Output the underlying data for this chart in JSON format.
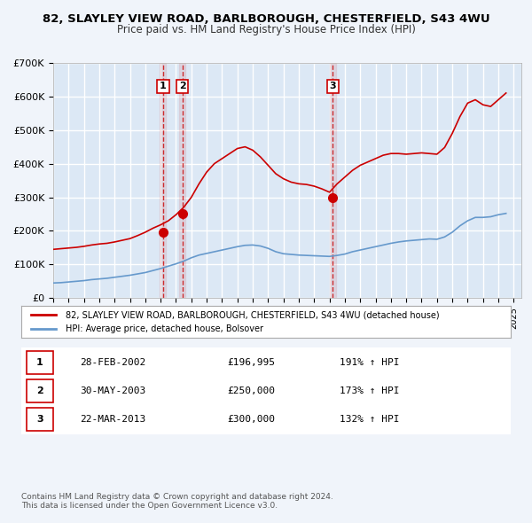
{
  "title": "82, SLAYLEY VIEW ROAD, BARLBOROUGH, CHESTERFIELD, S43 4WU",
  "subtitle": "Price paid vs. HM Land Registry's House Price Index (HPI)",
  "bg_color": "#f0f4fa",
  "plot_bg_color": "#dce8f5",
  "grid_color": "#ffffff",
  "red_line_color": "#cc0000",
  "blue_line_color": "#6699cc",
  "ylim": [
    0,
    700000
  ],
  "yticks": [
    0,
    100000,
    200000,
    300000,
    400000,
    500000,
    600000,
    700000
  ],
  "ytick_labels": [
    "£0",
    "£100K",
    "£200K",
    "£300K",
    "£400K",
    "£500K",
    "£600K",
    "£700K"
  ],
  "xmin": 1995.0,
  "xmax": 2025.5,
  "purchases": [
    {
      "year": 2002.16,
      "price": 196995,
      "label": "1"
    },
    {
      "year": 2003.41,
      "price": 250000,
      "label": "2"
    },
    {
      "year": 2013.22,
      "price": 300000,
      "label": "3"
    }
  ],
  "vline_years": [
    2002.16,
    2003.41,
    2013.22
  ],
  "legend_red_text": "82, SLAYLEY VIEW ROAD, BARLBOROUGH, CHESTERFIELD, S43 4WU (detached house)",
  "legend_blue_text": "HPI: Average price, detached house, Bolsover",
  "table_rows": [
    {
      "num": "1",
      "date": "28-FEB-2002",
      "price": "£196,995",
      "pct": "191% ↑ HPI"
    },
    {
      "num": "2",
      "date": "30-MAY-2003",
      "price": "£250,000",
      "pct": "173% ↑ HPI"
    },
    {
      "num": "3",
      "date": "22-MAR-2013",
      "price": "£300,000",
      "pct": "132% ↑ HPI"
    }
  ],
  "footer_text": "Contains HM Land Registry data © Crown copyright and database right 2024.\nThis data is licensed under the Open Government Licence v3.0.",
  "hpi_x": [
    1995.0,
    1995.5,
    1996.0,
    1996.5,
    1997.0,
    1997.5,
    1998.0,
    1998.5,
    1999.0,
    1999.5,
    2000.0,
    2000.5,
    2001.0,
    2001.5,
    2002.0,
    2002.5,
    2003.0,
    2003.5,
    2004.0,
    2004.5,
    2005.0,
    2005.5,
    2006.0,
    2006.5,
    2007.0,
    2007.5,
    2008.0,
    2008.5,
    2009.0,
    2009.5,
    2010.0,
    2010.5,
    2011.0,
    2011.5,
    2012.0,
    2012.5,
    2013.0,
    2013.5,
    2014.0,
    2014.5,
    2015.0,
    2015.5,
    2016.0,
    2016.5,
    2017.0,
    2017.5,
    2018.0,
    2018.5,
    2019.0,
    2019.5,
    2020.0,
    2020.5,
    2021.0,
    2021.5,
    2022.0,
    2022.5,
    2023.0,
    2023.5,
    2024.0,
    2024.5
  ],
  "hpi_y": [
    45000,
    46000,
    48000,
    50000,
    52000,
    55000,
    57000,
    59000,
    62000,
    65000,
    68000,
    72000,
    76000,
    82000,
    88000,
    95000,
    102000,
    110000,
    120000,
    128000,
    133000,
    138000,
    143000,
    148000,
    153000,
    157000,
    158000,
    155000,
    148000,
    138000,
    132000,
    130000,
    128000,
    127000,
    126000,
    125000,
    124000,
    127000,
    131000,
    138000,
    143000,
    148000,
    153000,
    158000,
    163000,
    167000,
    170000,
    172000,
    174000,
    176000,
    175000,
    182000,
    196000,
    215000,
    230000,
    240000,
    240000,
    242000,
    248000,
    252000
  ],
  "red_x": [
    1995.0,
    1995.5,
    1996.0,
    1996.5,
    1997.0,
    1997.5,
    1998.0,
    1998.5,
    1999.0,
    1999.5,
    2000.0,
    2000.5,
    2001.0,
    2001.5,
    2002.0,
    2002.5,
    2003.0,
    2003.5,
    2004.0,
    2004.5,
    2005.0,
    2005.5,
    2006.0,
    2006.5,
    2007.0,
    2007.5,
    2008.0,
    2008.5,
    2009.0,
    2009.5,
    2010.0,
    2010.5,
    2011.0,
    2011.5,
    2012.0,
    2012.5,
    2013.0,
    2013.5,
    2014.0,
    2014.5,
    2015.0,
    2015.5,
    2016.0,
    2016.5,
    2017.0,
    2017.5,
    2018.0,
    2018.5,
    2019.0,
    2019.5,
    2020.0,
    2020.5,
    2021.0,
    2021.5,
    2022.0,
    2022.5,
    2023.0,
    2023.5,
    2024.0,
    2024.5
  ],
  "red_y": [
    145000,
    147000,
    149000,
    151000,
    154000,
    158000,
    161000,
    163000,
    167000,
    172000,
    177000,
    186000,
    196000,
    208000,
    218000,
    230000,
    248000,
    270000,
    300000,
    340000,
    375000,
    400000,
    415000,
    430000,
    445000,
    450000,
    440000,
    420000,
    395000,
    370000,
    355000,
    345000,
    340000,
    338000,
    333000,
    325000,
    315000,
    340000,
    360000,
    380000,
    395000,
    405000,
    415000,
    425000,
    430000,
    430000,
    428000,
    430000,
    432000,
    430000,
    428000,
    448000,
    490000,
    540000,
    580000,
    590000,
    575000,
    570000,
    590000,
    610000
  ]
}
